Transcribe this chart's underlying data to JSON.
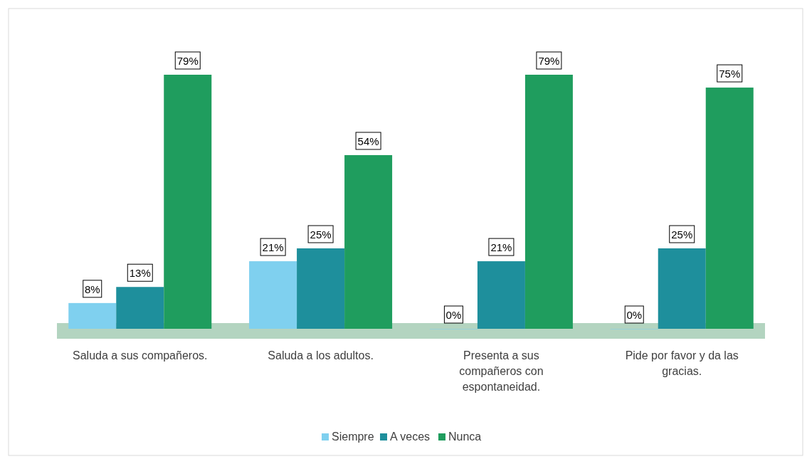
{
  "chart_data": {
    "type": "bar",
    "categories": [
      "Saluda a sus compañeros.",
      "Saluda a los adultos.",
      "Presenta a sus compañeros con espontaneidad.",
      "Pide por favor y da las gracias."
    ],
    "series": [
      {
        "name": "Siempre",
        "color": "#7fd0ef",
        "values": [
          8,
          21,
          0,
          0
        ],
        "value_labels": [
          "8%",
          "21%",
          "0%",
          "0%"
        ]
      },
      {
        "name": "A veces",
        "color": "#1e8f9c",
        "values": [
          13,
          25,
          21,
          25
        ],
        "value_labels": [
          "13%",
          "25%",
          "21%",
          "25%"
        ]
      },
      {
        "name": "Nunca",
        "color": "#1f9d5e",
        "values": [
          79,
          54,
          79,
          75
        ],
        "value_labels": [
          "79%",
          "54%",
          "79%",
          "75%"
        ]
      }
    ],
    "legend": "bottom"
  }
}
